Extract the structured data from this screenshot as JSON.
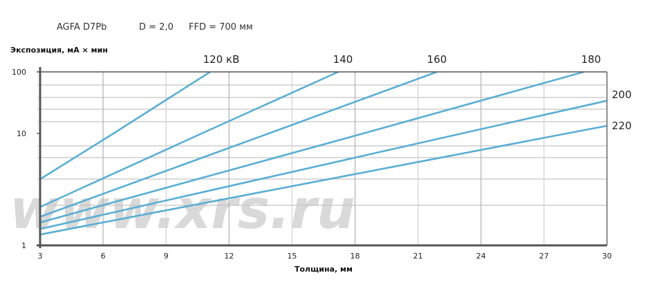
{
  "header": {
    "film": "AGFA D7Pb",
    "density": "D = 2,0",
    "ffd": "FFD = 700 мм"
  },
  "watermark": "www.xrs.ru",
  "chart_data": {
    "type": "line",
    "title": "",
    "xlabel": "Толщина, мм",
    "ylabel": "Экспозиция, мА × мин",
    "xlim": [
      3,
      30
    ],
    "ylim": [
      1,
      100
    ],
    "yscale": "log",
    "xticks": [
      "3",
      "6",
      "9",
      "12",
      "15",
      "18",
      "21",
      "24",
      "27",
      "30"
    ],
    "yticks": [
      "1",
      "10",
      "100"
    ],
    "grid": true,
    "line_color": "#5aaed3",
    "series": [
      {
        "name": "120 кВ",
        "points": [
          [
            3,
            3.9
          ],
          [
            6.5,
            10
          ],
          [
            11.1,
            100
          ]
        ]
      },
      {
        "name": "140",
        "points": [
          [
            3,
            2.2
          ],
          [
            10.7,
            10
          ],
          [
            17.2,
            100
          ]
        ]
      },
      {
        "name": "160",
        "points": [
          [
            3,
            1.8
          ],
          [
            13.9,
            10
          ],
          [
            21.9,
            100
          ]
        ]
      },
      {
        "name": "180",
        "points": [
          [
            3,
            1.6
          ],
          [
            18.4,
            10
          ],
          [
            28.9,
            100
          ]
        ]
      },
      {
        "name": "200",
        "points": [
          [
            3,
            1.4
          ],
          [
            23.1,
            10
          ],
          [
            30,
            34
          ]
        ]
      },
      {
        "name": "220",
        "points": [
          [
            3,
            1.25
          ],
          [
            28.1,
            10
          ],
          [
            30,
            13.3
          ]
        ]
      }
    ]
  }
}
